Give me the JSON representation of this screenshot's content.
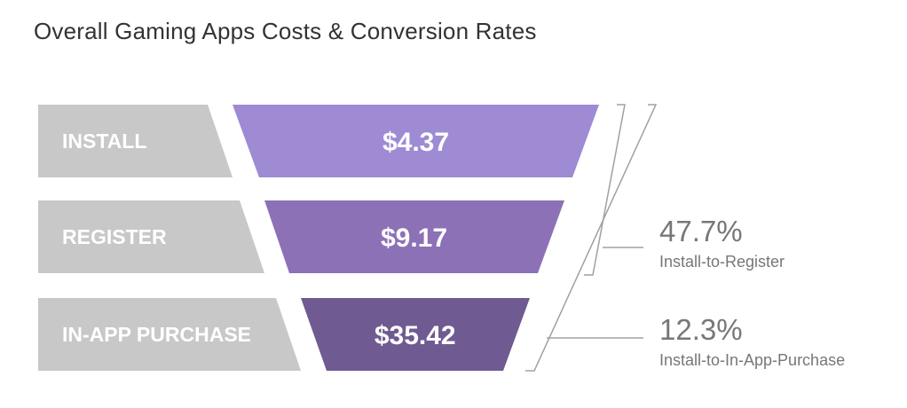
{
  "title": "Overall Gaming Apps Costs & Conversion Rates",
  "colors": {
    "label_bg": "#c8c8c8",
    "stages": [
      "#9e8bd4",
      "#8c71b7",
      "#6f5a91"
    ],
    "bracket": "#a0a0a0",
    "rate_text": "#777777"
  },
  "chart_data": {
    "type": "funnel",
    "title": "Overall Gaming Apps Costs & Conversion Rates",
    "stages": [
      {
        "label": "INSTALL",
        "value": 4.37,
        "display": "$4.37"
      },
      {
        "label": "REGISTER",
        "value": 9.17,
        "display": "$9.17"
      },
      {
        "label": "IN-APP PURCHASE",
        "value": 35.42,
        "display": "$35.42"
      }
    ],
    "conversion_rates": [
      {
        "value": 47.7,
        "display": "47.7%",
        "label": "Install-to-Register"
      },
      {
        "value": 12.3,
        "display": "12.3%",
        "label": "Install-to-In-App-Purchase"
      }
    ]
  }
}
